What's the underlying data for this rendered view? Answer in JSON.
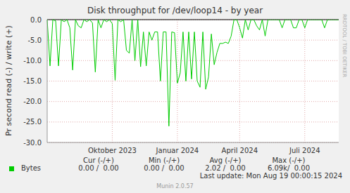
{
  "chart_data": {
    "type": "line",
    "title": "Disk throughput for /dev/loop14 - by year",
    "y_label": "Pr second read (-) / write (+)",
    "annotations": [
      "RRDTOOL / TOBI OETIKER",
      "Last update: Mon Aug 19 00:00:15 2024",
      "Munin 2.0.57"
    ],
    "categories": [
      null,
      null,
      null,
      null,
      null,
      null,
      null,
      null,
      null,
      null,
      null,
      null,
      null,
      null,
      null,
      null,
      null,
      null,
      null,
      null,
      null,
      null,
      null,
      "Oktober 2023",
      null,
      null,
      null,
      null,
      null,
      null,
      null,
      null,
      null,
      null,
      null,
      null,
      null,
      null,
      null,
      null,
      null,
      null,
      null,
      null,
      null,
      null,
      "Januar 2024",
      null,
      null,
      null,
      null,
      null,
      null,
      null,
      null,
      null,
      null,
      null,
      null,
      null,
      null,
      null,
      null,
      null,
      null,
      null,
      null,
      null,
      "April 2024",
      null,
      null,
      null,
      null,
      null,
      null,
      null,
      null,
      null,
      null,
      null,
      null,
      null,
      null,
      null,
      null,
      null,
      null,
      null,
      null,
      null,
      null,
      "Juli 2024",
      null,
      null,
      null,
      null,
      null,
      null,
      null,
      null,
      null,
      null,
      null,
      null
    ],
    "series": [
      {
        "name": "Bytes",
        "color": "#00cc00",
        "values": [
          0,
          -11.3,
          0,
          -0.3,
          -11.3,
          0,
          -0.5,
          0,
          -2,
          -12.3,
          0,
          -1.5,
          -2,
          0,
          -0.5,
          0,
          -0.8,
          -12.8,
          0,
          -2,
          0,
          -0.5,
          0,
          -1,
          -14.8,
          0,
          -0.5,
          0,
          -7.5,
          -8.2,
          0,
          -10,
          0,
          -11.5,
          -3,
          -11.3,
          -3,
          -5,
          -3,
          -3,
          -15,
          -3,
          -3,
          -26,
          -3,
          -3.2,
          -15.5,
          -13,
          -3,
          -15,
          -3,
          -14.5,
          -3,
          -15,
          -16.5,
          -3,
          -17,
          -14,
          -3.5,
          -11,
          -8,
          -5.8,
          -5.8,
          -5.5,
          -5.8,
          -4,
          0,
          0,
          -2,
          -4.5,
          0,
          -2.5,
          0,
          0,
          -1.5,
          -2.5,
          0,
          -4,
          0,
          0,
          0,
          0,
          0,
          -2,
          0,
          0,
          0,
          -2,
          -2,
          0,
          0,
          -2,
          0,
          0,
          0,
          0,
          0,
          0,
          -2,
          0,
          0,
          0,
          0,
          0
        ]
      }
    ],
    "legend_table": {
      "columns": [
        "Cur (-/+)",
        "Min (-/+)",
        "Avg (-/+)",
        "Max (-/+)"
      ],
      "rows": [
        {
          "name": "Bytes",
          "cells": [
            "0.00 /  0.00",
            "0.00 /  0.00",
            "2.02 /  0.00",
            "6.09k/  0.00"
          ]
        }
      ]
    },
    "ylim": [
      -30,
      0
    ],
    "yticks": [
      {
        "value": 0,
        "label": "0.0"
      },
      {
        "value": -5,
        "label": "-5.0"
      },
      {
        "value": -10,
        "label": "-10.0"
      },
      {
        "value": -15,
        "label": "-15.0"
      },
      {
        "value": -20,
        "label": "-20.0"
      },
      {
        "value": -25,
        "label": "-25.0"
      },
      {
        "value": -30,
        "label": "-30.0"
      }
    ],
    "grid": true
  }
}
